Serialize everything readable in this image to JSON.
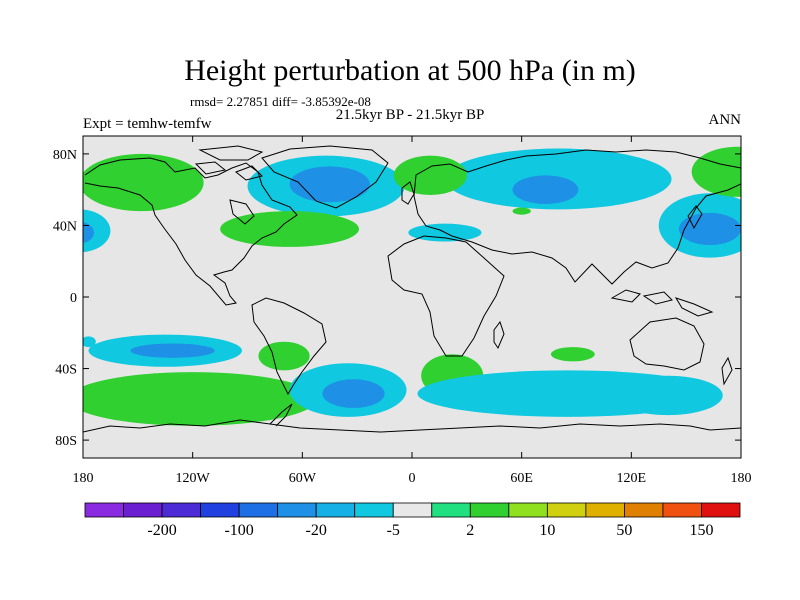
{
  "chart_data": {
    "type": "heatmap",
    "title": "Height perturbation at 500 hPa (in m)",
    "stats_label": "rmsd= 2.27851 diff= -3.85392e-08",
    "left_label": "Expt = temhw-temfw",
    "center_label": "21.5kyr BP - 21.5kyr BP",
    "right_label": "ANN",
    "x_axis": {
      "range": [
        -180,
        180
      ],
      "ticks": [
        -180,
        -120,
        -60,
        0,
        60,
        120,
        180
      ],
      "tick_labels": [
        "180",
        "120W",
        "60W",
        "0",
        "60E",
        "120E",
        "180"
      ]
    },
    "y_axis": {
      "range": [
        -90,
        90
      ],
      "ticks": [
        80,
        40,
        0,
        -40,
        -80
      ],
      "tick_labels": [
        "80N",
        "40N",
        "0",
        "40S",
        "80S"
      ]
    },
    "colorbar": {
      "colors": [
        "#8a2be2",
        "#6a1fd0",
        "#4b2bd6",
        "#2040e0",
        "#1e6ee6",
        "#1e90e6",
        "#14b0e6",
        "#10c8e0",
        "#e8e8e8",
        "#20e080",
        "#30d030",
        "#90e020",
        "#d0d010",
        "#e0b000",
        "#e08000",
        "#f05010",
        "#e01010"
      ],
      "labels": [
        "-200",
        "-100",
        "-20",
        "-5",
        "2",
        "10",
        "50",
        "150"
      ]
    },
    "contour_regions": [
      {
        "name": "north-pacific-green-outer",
        "level": "10",
        "lon": -148,
        "lat": 64,
        "dlon": 34,
        "dlat": 16
      },
      {
        "name": "north-pacific-green-inner",
        "level": "10",
        "lon": -150,
        "lat": 62,
        "dlon": 20,
        "dlat": 10
      },
      {
        "name": "northeast-pacific-cyan",
        "level": "-5",
        "lon": -182,
        "lat": 37,
        "dlon": 17,
        "dlat": 12
      },
      {
        "name": "northeast-pacific-blue",
        "level": "-20",
        "lon": -182,
        "lat": 36,
        "dlon": 8,
        "dlat": 6
      },
      {
        "name": "greenland-cyan",
        "level": "-5",
        "lon": -47,
        "lat": 62,
        "dlon": 43,
        "dlat": 17
      },
      {
        "name": "greenland-blue",
        "level": "-20",
        "lon": -45,
        "lat": 63,
        "dlon": 22,
        "dlat": 10
      },
      {
        "name": "north-atlantic-green",
        "level": "10",
        "lon": -67,
        "lat": 38,
        "dlon": 38,
        "dlat": 10
      },
      {
        "name": "north-atlantic-green-inner",
        "level": "10",
        "lon": -60,
        "lat": 38,
        "dlon": 20,
        "dlat": 5
      },
      {
        "name": "eurasia-cyan",
        "level": "-5",
        "lon": 80,
        "lat": 66,
        "dlon": 62,
        "dlat": 17
      },
      {
        "name": "siberia-blue",
        "level": "-20",
        "lon": 73,
        "lat": 60,
        "dlon": 18,
        "dlat": 8
      },
      {
        "name": "scandinavia-green",
        "level": "10",
        "lon": 10,
        "lat": 68,
        "dlon": 20,
        "dlat": 11
      },
      {
        "name": "mediterranean-cyan",
        "level": "-5",
        "lon": 18,
        "lat": 36,
        "dlon": 20,
        "dlat": 5
      },
      {
        "name": "central-asia-green",
        "level": "10",
        "lon": 60,
        "lat": 48,
        "dlon": 5,
        "dlat": 2
      },
      {
        "name": "northwest-pacific-cyan",
        "level": "-5",
        "lon": 163,
        "lat": 40,
        "dlon": 28,
        "dlat": 18
      },
      {
        "name": "northwest-pacific-blue",
        "level": "-20",
        "lon": 163,
        "lat": 38,
        "dlon": 17,
        "dlat": 9
      },
      {
        "name": "bering-green",
        "level": "10",
        "lon": 178,
        "lat": 70,
        "dlon": 25,
        "dlat": 14
      },
      {
        "name": "south-pacific-cyan",
        "level": "-5",
        "lon": -135,
        "lat": -30,
        "dlon": 42,
        "dlat": 9
      },
      {
        "name": "south-pacific-blue",
        "level": "-20",
        "lon": -131,
        "lat": -30,
        "dlon": 23,
        "dlat": 4
      },
      {
        "name": "southeast-pacific-green-outer",
        "level": "10",
        "lon": -120,
        "lat": -57,
        "dlon": 68,
        "dlat": 15
      },
      {
        "name": "southeast-pacific-green-inner",
        "level": "10",
        "lon": -122,
        "lat": -58,
        "dlon": 40,
        "dlat": 9
      },
      {
        "name": "south-america-green",
        "level": "10",
        "lon": -70,
        "lat": -33,
        "dlon": 14,
        "dlat": 8
      },
      {
        "name": "south-atlantic-cyan",
        "level": "-5",
        "lon": -35,
        "lat": -52,
        "dlon": 32,
        "dlat": 15
      },
      {
        "name": "south-atlantic-blue",
        "level": "-20",
        "lon": -32,
        "lat": -54,
        "dlon": 17,
        "dlat": 8
      },
      {
        "name": "south-africa-green",
        "level": "10",
        "lon": 22,
        "lat": -44,
        "dlon": 17,
        "dlat": 12
      },
      {
        "name": "southern-ocean-cyan",
        "level": "-5",
        "lon": 85,
        "lat": -54,
        "dlon": 82,
        "dlat": 13
      },
      {
        "name": "southern-ocean-east-cyan",
        "level": "-5",
        "lon": 140,
        "lat": -55,
        "dlon": 30,
        "dlat": 11
      },
      {
        "name": "south-indian-green",
        "level": "10",
        "lon": 88,
        "lat": -32,
        "dlon": 12,
        "dlat": 4
      },
      {
        "name": "southwest-pacific-cyan",
        "level": "-5",
        "lon": -177,
        "lat": -25,
        "dlon": 4,
        "dlat": 3
      }
    ]
  }
}
